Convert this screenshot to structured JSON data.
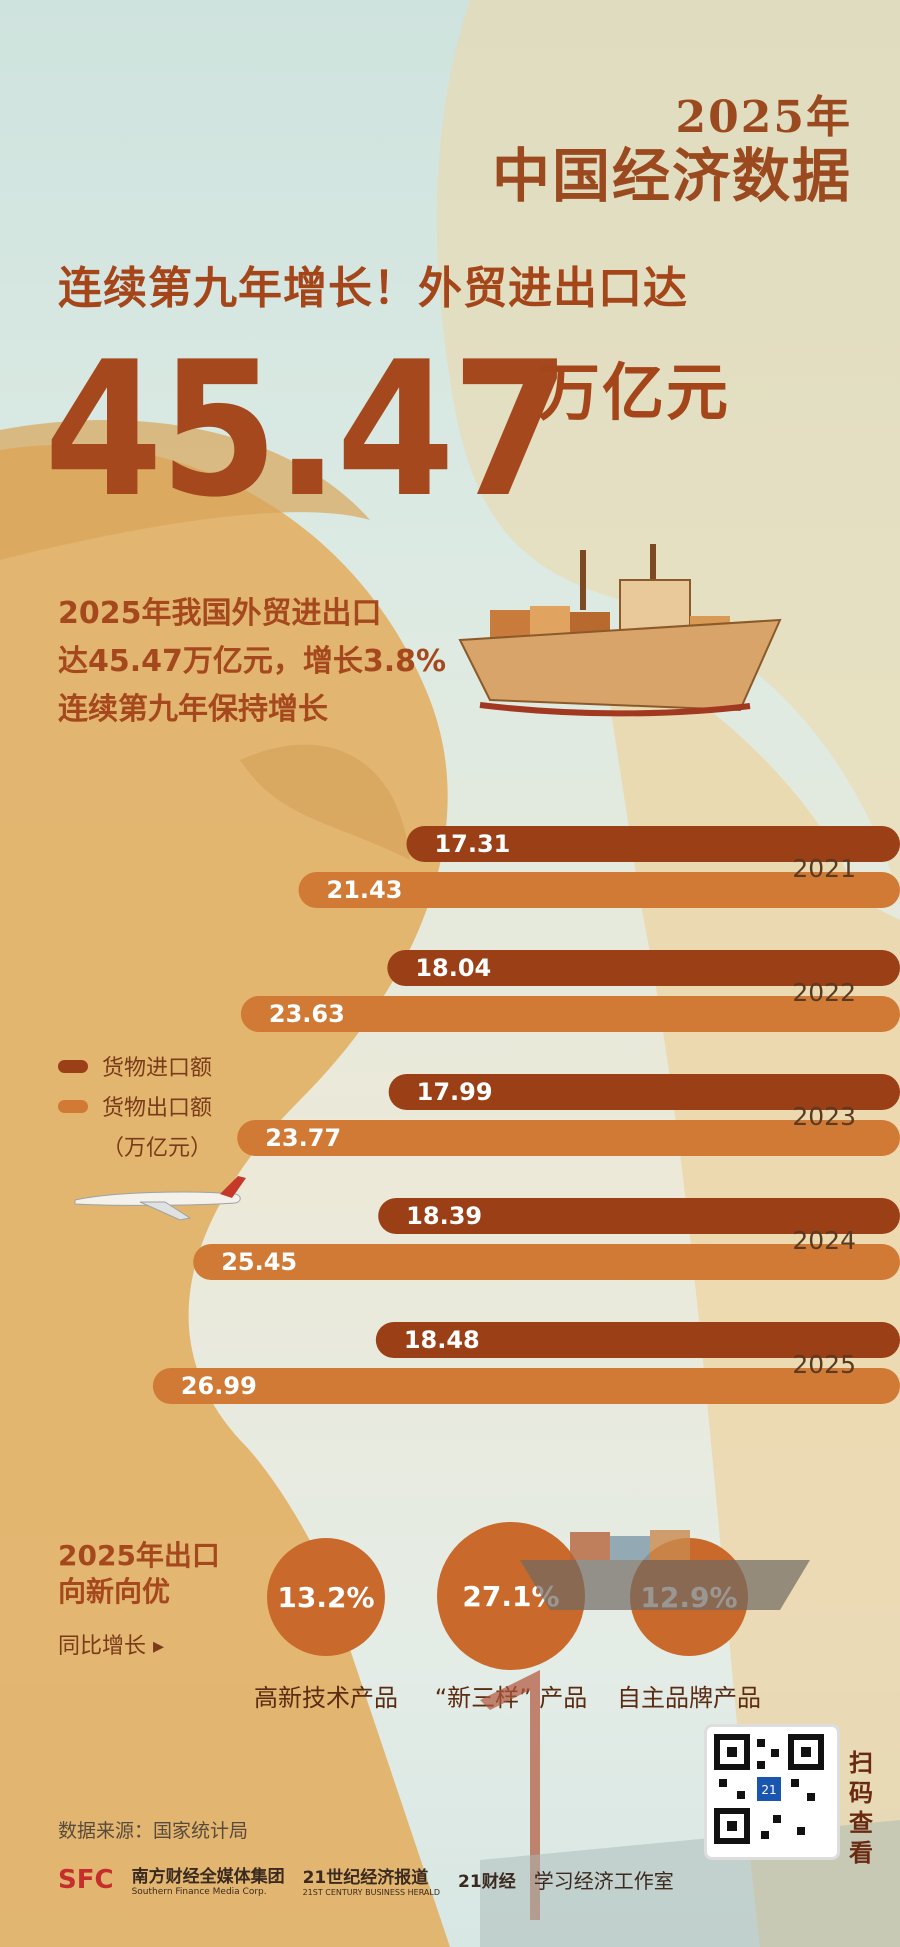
{
  "brand": {
    "year": "2025年",
    "title": "中国经济数据"
  },
  "headline": "连续第九年增长！外贸进出口达",
  "big_number": "45.47",
  "big_unit": "万亿元",
  "summary_lines": [
    "2025年我国外贸进出口",
    "达45.47万亿元，增长3.8%",
    "连续第九年保持增长"
  ],
  "legend": {
    "import_label": "货物进口额",
    "export_label": "货物出口额",
    "unit": "（万亿元）"
  },
  "colors": {
    "import": "#9b3f16",
    "export": "#d07a35",
    "accent": "#a5481d",
    "swoosh": "#e6b26b"
  },
  "chart_data": {
    "type": "bar",
    "orientation": "horizontal",
    "categories": [
      "2021",
      "2022",
      "2023",
      "2024",
      "2025"
    ],
    "series": [
      {
        "name": "货物进口额",
        "values": [
          17.31,
          18.04,
          17.99,
          18.39,
          18.48
        ]
      },
      {
        "name": "货物出口额",
        "values": [
          21.43,
          23.63,
          23.77,
          25.45,
          26.99
        ]
      }
    ],
    "value_labels": {
      "import": [
        "17.31",
        "18.04",
        "17.99",
        "18.39",
        "18.48"
      ],
      "export": [
        "21.43",
        "23.63",
        "23.77",
        "25.45",
        "26.99"
      ]
    },
    "unit": "万亿元"
  },
  "export_growth": {
    "title_lines": [
      "2025年出口",
      "向新向优"
    ],
    "subtitle": "同比增长 ▸",
    "items": [
      {
        "value": "13.2%",
        "label": "高新技术产品"
      },
      {
        "value": "27.1%",
        "label": "“新三样” 产品"
      },
      {
        "value": "12.9%",
        "label": "自主品牌产品"
      }
    ]
  },
  "source": "数据来源：国家统计局",
  "footer": {
    "logo1": "SFC",
    "org1": "南方财经全媒体集团",
    "org1_en": "Southern Finance Media Corp.",
    "org2": "21世纪经济报道",
    "org2_en": "21ST CENTURY BUSINESS HERALD",
    "org3": "21财经",
    "org4": "学习经济工作室"
  },
  "qr": {
    "badge": "21",
    "scan_text": "扫码查看"
  }
}
